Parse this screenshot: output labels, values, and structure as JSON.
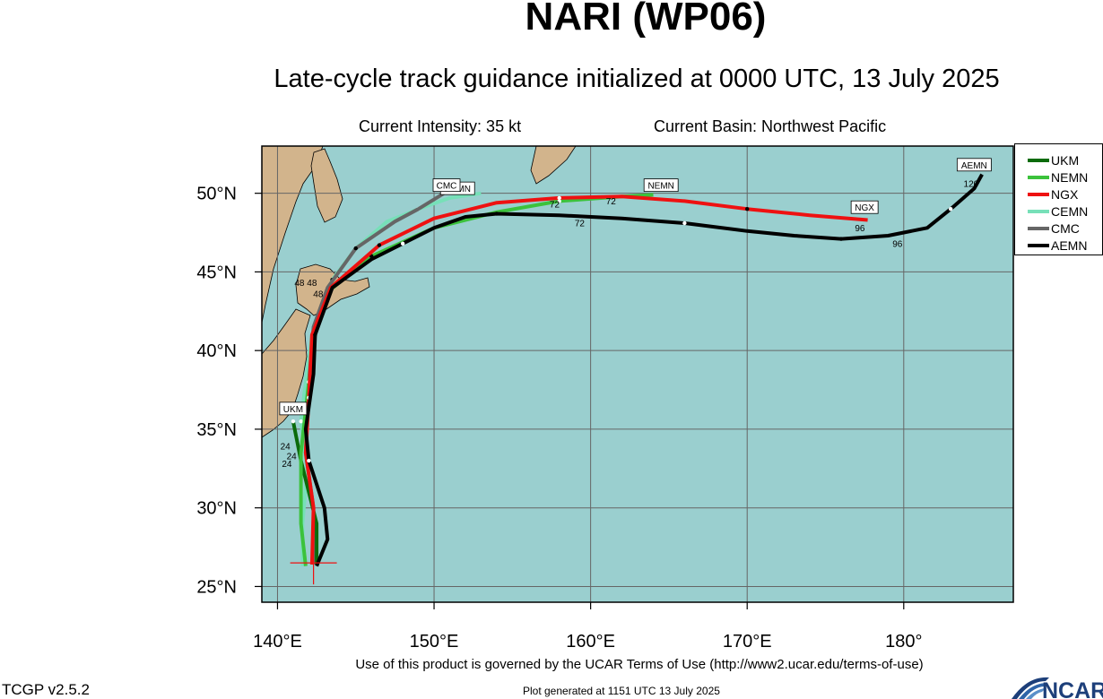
{
  "header": {
    "title": "NARI (WP06)",
    "subtitle": "Late-cycle track guidance initialized at 0000 UTC, 13 July 2025",
    "current_intensity": "Current Intensity: 35 kt",
    "current_basin": "Current Basin: Northwest Pacific"
  },
  "map": {
    "lon_range": [
      139,
      187
    ],
    "lat_range": [
      24,
      53
    ],
    "lon_ticks": [
      {
        "value": 140,
        "label": "140°E"
      },
      {
        "value": 150,
        "label": "150°E"
      },
      {
        "value": 160,
        "label": "160°E"
      },
      {
        "value": 170,
        "label": "170°E"
      },
      {
        "value": 180,
        "label": "180°"
      }
    ],
    "lat_ticks": [
      {
        "value": 25,
        "label": "25°N"
      },
      {
        "value": 30,
        "label": "30°N"
      },
      {
        "value": 35,
        "label": "35°N"
      },
      {
        "value": 40,
        "label": "40°N"
      },
      {
        "value": 45,
        "label": "45°N"
      },
      {
        "value": 50,
        "label": "50°N"
      }
    ],
    "ocean_color": "#9acfcf",
    "land_color": "#d2b48c",
    "current_position": {
      "lon": 142.3,
      "lat": 26.5
    }
  },
  "legend": [
    {
      "name": "UKM",
      "color": "#0b6b0b"
    },
    {
      "name": "NEMN",
      "color": "#3cc23c"
    },
    {
      "name": "NGX",
      "color": "#ee1111"
    },
    {
      "name": "CEMN",
      "color": "#77e0b8"
    },
    {
      "name": "CMC",
      "color": "#666666"
    },
    {
      "name": "AEMN",
      "color": "#000000"
    }
  ],
  "tracks": [
    {
      "name": "CEMN",
      "color": "#77e0b8",
      "width": 4,
      "points": [
        [
          141.6,
          26.3
        ],
        [
          141.6,
          29
        ],
        [
          141.9,
          32.5
        ],
        [
          141.5,
          35.5
        ],
        [
          141.8,
          38
        ],
        [
          142.2,
          41
        ],
        [
          143.5,
          44.5
        ],
        [
          145,
          46.5
        ],
        [
          147,
          48.2
        ],
        [
          149,
          49
        ],
        [
          151,
          49.7
        ],
        [
          153,
          50
        ]
      ],
      "label": "CEMN",
      "label_pos": [
        151.5,
        50.2
      ]
    },
    {
      "name": "CMC",
      "color": "#666666",
      "width": 4,
      "points": [
        [
          142.3,
          26.4
        ],
        [
          142.3,
          30
        ],
        [
          141.8,
          33.5
        ],
        [
          142,
          38
        ],
        [
          142.3,
          41.5
        ],
        [
          143.2,
          44
        ],
        [
          145,
          46.5
        ],
        [
          147.5,
          48.2
        ],
        [
          149,
          49
        ],
        [
          150.8,
          50.1
        ]
      ],
      "label": "CMC",
      "label_pos": [
        150.8,
        50.4
      ]
    },
    {
      "name": "UKM",
      "color": "#0b6b0b",
      "width": 4,
      "points": [
        [
          142.5,
          26.4
        ],
        [
          142.5,
          29
        ],
        [
          141.5,
          33
        ],
        [
          141,
          35.5
        ]
      ],
      "label": "UKM",
      "label_pos": [
        141,
        36.2
      ]
    },
    {
      "name": "NEMN",
      "color": "#3cc23c",
      "width": 4,
      "points": [
        [
          141.8,
          26.3
        ],
        [
          141.5,
          29
        ],
        [
          141.5,
          33.5
        ],
        [
          142,
          38
        ],
        [
          142.4,
          41
        ],
        [
          143.3,
          43.8
        ],
        [
          146,
          46
        ],
        [
          150,
          47.8
        ],
        [
          154,
          48.8
        ],
        [
          158,
          49.5
        ],
        [
          162,
          49.8
        ],
        [
          164,
          49.9
        ]
      ],
      "label": "NEMN",
      "label_pos": [
        164.5,
        50.4
      ]
    },
    {
      "name": "NGX",
      "color": "#ee1111",
      "width": 4,
      "points": [
        [
          142.2,
          26.4
        ],
        [
          142.3,
          30
        ],
        [
          141.8,
          33.5
        ],
        [
          142,
          37
        ],
        [
          142.2,
          41
        ],
        [
          143.4,
          44
        ],
        [
          146.5,
          46.7
        ],
        [
          150,
          48.4
        ],
        [
          154,
          49.4
        ],
        [
          158,
          49.7
        ],
        [
          162,
          49.8
        ],
        [
          166,
          49.5
        ],
        [
          170,
          49
        ],
        [
          174,
          48.6
        ],
        [
          177.7,
          48.3
        ]
      ],
      "label": "NGX",
      "label_pos": [
        177.5,
        49
      ]
    },
    {
      "name": "AEMN",
      "color": "#000000",
      "width": 4,
      "points": [
        [
          142.5,
          26.3
        ],
        [
          143.2,
          28
        ],
        [
          143,
          30
        ],
        [
          142,
          33
        ],
        [
          141.8,
          35
        ],
        [
          142.3,
          38.5
        ],
        [
          142.4,
          41
        ],
        [
          143.5,
          44
        ],
        [
          146,
          45.8
        ],
        [
          148,
          46.8
        ],
        [
          150,
          47.8
        ],
        [
          152,
          48.5
        ],
        [
          154,
          48.7
        ],
        [
          158,
          48.6
        ],
        [
          162,
          48.4
        ],
        [
          166,
          48.1
        ],
        [
          170,
          47.6
        ],
        [
          173,
          47.3
        ],
        [
          176,
          47.1
        ],
        [
          179,
          47.3
        ],
        [
          181.5,
          47.8
        ],
        [
          183,
          49
        ],
        [
          184.5,
          50.3
        ],
        [
          185,
          51.2
        ]
      ],
      "label": "AEMN",
      "label_pos": [
        184.5,
        51.7
      ]
    }
  ],
  "point_labels": [
    {
      "text": "24",
      "lon": 140.5,
      "lat": 33.7
    },
    {
      "text": "24",
      "lon": 140.9,
      "lat": 33.1
    },
    {
      "text": "24",
      "lon": 140.6,
      "lat": 32.6
    },
    {
      "text": "48",
      "lon": 141.4,
      "lat": 44.1
    },
    {
      "text": "48",
      "lon": 142.2,
      "lat": 44.1
    },
    {
      "text": "48",
      "lon": 142.6,
      "lat": 43.4
    },
    {
      "text": "72",
      "lon": 157.7,
      "lat": 49.1
    },
    {
      "text": "72",
      "lon": 161.3,
      "lat": 49.3
    },
    {
      "text": "72",
      "lon": 159.3,
      "lat": 47.9
    },
    {
      "text": "96",
      "lon": 177.2,
      "lat": 47.6
    },
    {
      "text": "96",
      "lon": 179.6,
      "lat": 46.6
    },
    {
      "text": "120",
      "lon": 184.3,
      "lat": 50.4
    }
  ],
  "footer": {
    "terms": "Use of this product is governed by the UCAR Terms of Use (http://www2.ucar.edu/terms-of-use)",
    "version": "TCGP v2.5.2",
    "generated": "Plot generated at 1151 UTC   13 July 2025",
    "logo": "NCAR"
  }
}
